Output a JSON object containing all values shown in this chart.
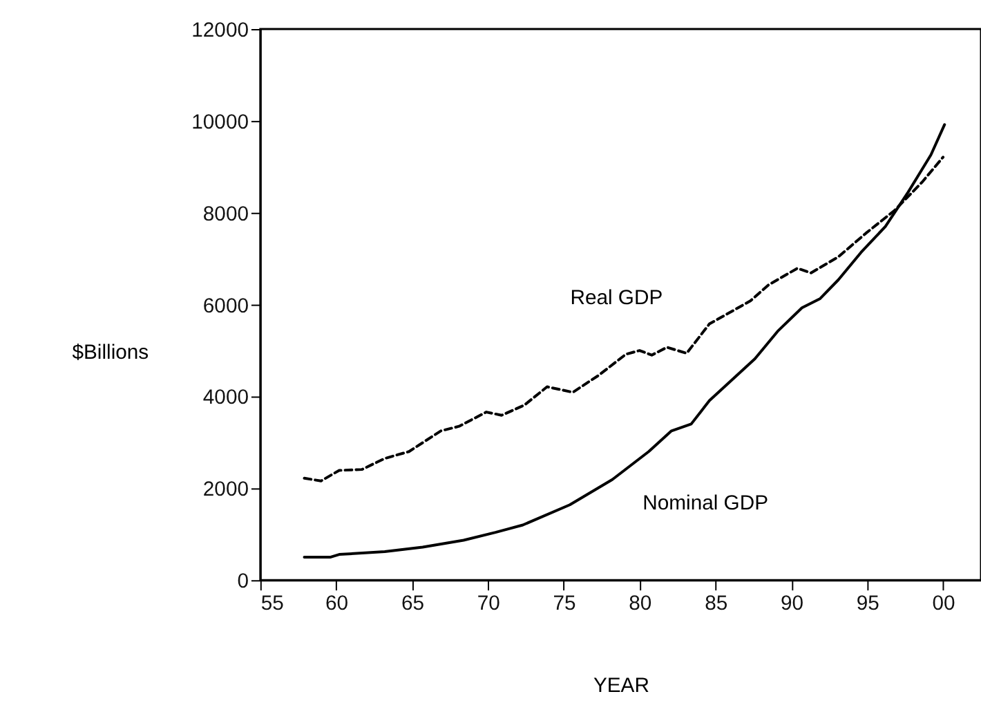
{
  "chart_data": {
    "type": "line",
    "xlabel": "YEAR",
    "ylabel": "$Billions",
    "xlim": [
      1955,
      2002.5
    ],
    "ylim": [
      0,
      12000
    ],
    "xticks": [
      {
        "value": 1955,
        "label": "55"
      },
      {
        "value": 1960,
        "label": "60"
      },
      {
        "value": 1965,
        "label": "65"
      },
      {
        "value": 1970,
        "label": "70"
      },
      {
        "value": 1975,
        "label": "75"
      },
      {
        "value": 1980,
        "label": "80"
      },
      {
        "value": 1985,
        "label": "85"
      },
      {
        "value": 1990,
        "label": "90"
      },
      {
        "value": 1995,
        "label": "95"
      },
      {
        "value": 2000,
        "label": "00"
      }
    ],
    "yticks": [
      0,
      2000,
      4000,
      6000,
      8000,
      10000,
      12000
    ],
    "grid": false,
    "marker": "none",
    "series": [
      {
        "name": "Real GDP",
        "color": "#000000",
        "line_style": "dashed",
        "x": [
          1957.9,
          1959.0,
          1960.2,
          1961.7,
          1963.2,
          1964.8,
          1966.9,
          1968.1,
          1969.9,
          1970.9,
          1972.4,
          1973.9,
          1975.6,
          1977.3,
          1979.1,
          1980.0,
          1980.8,
          1981.8,
          1983.1,
          1984.6,
          1987.3,
          1988.5,
          1990.4,
          1991.3,
          1993.1,
          1994.9,
          1996.8,
          1998.6,
          2000.0
        ],
        "values": [
          2220,
          2160,
          2390,
          2410,
          2650,
          2800,
          3250,
          3350,
          3660,
          3590,
          3810,
          4210,
          4090,
          4460,
          4920,
          5000,
          4900,
          5070,
          4940,
          5580,
          6080,
          6430,
          6790,
          6690,
          7040,
          7550,
          8050,
          8660,
          9210
        ]
      },
      {
        "name": "Nominal GDP",
        "color": "#000000",
        "line_style": "solid",
        "x": [
          1957.9,
          1959.6,
          1960.2,
          1963.2,
          1965.7,
          1968.4,
          1970.5,
          1972.3,
          1975.4,
          1978.2,
          1980.6,
          1982.1,
          1983.4,
          1984.6,
          1987.6,
          1989.1,
          1990.7,
          1991.9,
          1993.1,
          1994.6,
          1996.2,
          1997.7,
          1999.2,
          2000.1
        ],
        "values": [
          500,
          500,
          560,
          620,
          720,
          870,
          1040,
          1200,
          1640,
          2190,
          2800,
          3250,
          3400,
          3910,
          4820,
          5420,
          5930,
          6130,
          6540,
          7140,
          7700,
          8450,
          9260,
          9920
        ]
      }
    ]
  }
}
